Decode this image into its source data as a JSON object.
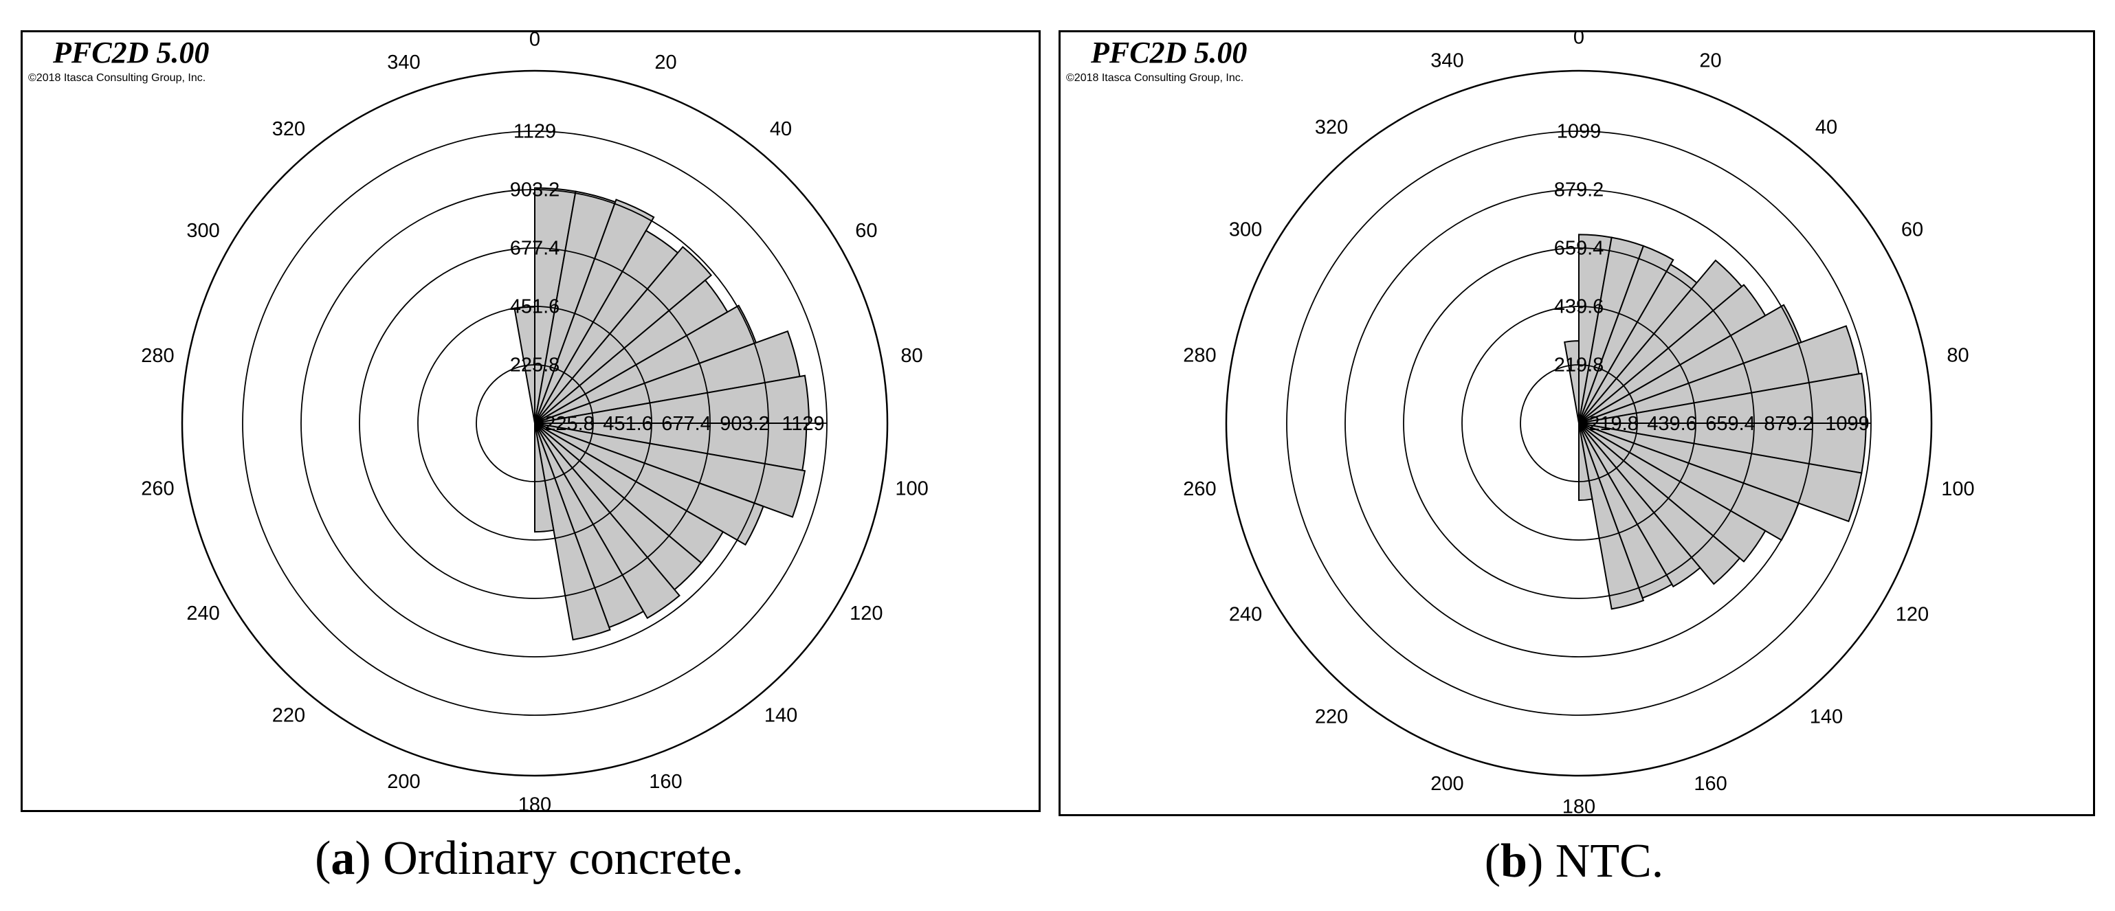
{
  "panels": [
    {
      "brand": "PFC2D 5.00",
      "copyright": "©2018 Itasca Consulting Group, Inc.",
      "caption_letter": "a",
      "caption_text": "Ordinary concrete."
    },
    {
      "brand": "PFC2D 5.00",
      "copyright": "©2018 Itasca Consulting Group, Inc.",
      "caption_letter": "b",
      "caption_text": "NTC."
    }
  ],
  "chart_data": [
    {
      "type": "polar-histogram",
      "angle_labels": [
        "0",
        "20",
        "40",
        "60",
        "80",
        "100",
        "120",
        "140",
        "160",
        "180",
        "200",
        "220",
        "240",
        "260",
        "280",
        "300",
        "320",
        "340"
      ],
      "radial_ticks": [
        "225.8",
        "451.6",
        "677.4",
        "903.2",
        "1129"
      ],
      "radial_max": 1129,
      "bin_width_deg": 10,
      "bins": [
        {
          "start": 0,
          "value": 910
        },
        {
          "start": 10,
          "value": 910
        },
        {
          "start": 20,
          "value": 920
        },
        {
          "start": 30,
          "value": 860
        },
        {
          "start": 40,
          "value": 890
        },
        {
          "start": 50,
          "value": 860
        },
        {
          "start": 60,
          "value": 910
        },
        {
          "start": 70,
          "value": 1040
        },
        {
          "start": 80,
          "value": 1060
        },
        {
          "start": 90,
          "value": 1050
        },
        {
          "start": 100,
          "value": 1060
        },
        {
          "start": 110,
          "value": 940
        },
        {
          "start": 120,
          "value": 840
        },
        {
          "start": 130,
          "value": 840
        },
        {
          "start": 140,
          "value": 870
        },
        {
          "start": 150,
          "value": 840
        },
        {
          "start": 160,
          "value": 850
        },
        {
          "start": 170,
          "value": 420
        },
        {
          "start": 350,
          "value": 450
        }
      ],
      "fill_color": "#c8c8c8",
      "edge_color": "#000000"
    },
    {
      "type": "polar-histogram",
      "angle_labels": [
        "0",
        "20",
        "40",
        "60",
        "80",
        "100",
        "120",
        "140",
        "160",
        "180",
        "200",
        "220",
        "240",
        "260",
        "280",
        "300",
        "320",
        "340"
      ],
      "radial_ticks": [
        "219.8",
        "439.6",
        "659.4",
        "879.2",
        "1099"
      ],
      "radial_max": 1099,
      "bin_width_deg": 10,
      "bins": [
        {
          "start": 0,
          "value": 710
        },
        {
          "start": 10,
          "value": 710
        },
        {
          "start": 20,
          "value": 710
        },
        {
          "start": 30,
          "value": 690
        },
        {
          "start": 40,
          "value": 800
        },
        {
          "start": 50,
          "value": 810
        },
        {
          "start": 60,
          "value": 890
        },
        {
          "start": 70,
          "value": 1070
        },
        {
          "start": 80,
          "value": 1080
        },
        {
          "start": 90,
          "value": 1080
        },
        {
          "start": 100,
          "value": 1080
        },
        {
          "start": 110,
          "value": 880
        },
        {
          "start": 120,
          "value": 810
        },
        {
          "start": 130,
          "value": 790
        },
        {
          "start": 140,
          "value": 710
        },
        {
          "start": 150,
          "value": 700
        },
        {
          "start": 160,
          "value": 710
        },
        {
          "start": 170,
          "value": 290
        },
        {
          "start": 350,
          "value": 310
        }
      ],
      "fill_color": "#c8c8c8",
      "edge_color": "#000000"
    }
  ]
}
